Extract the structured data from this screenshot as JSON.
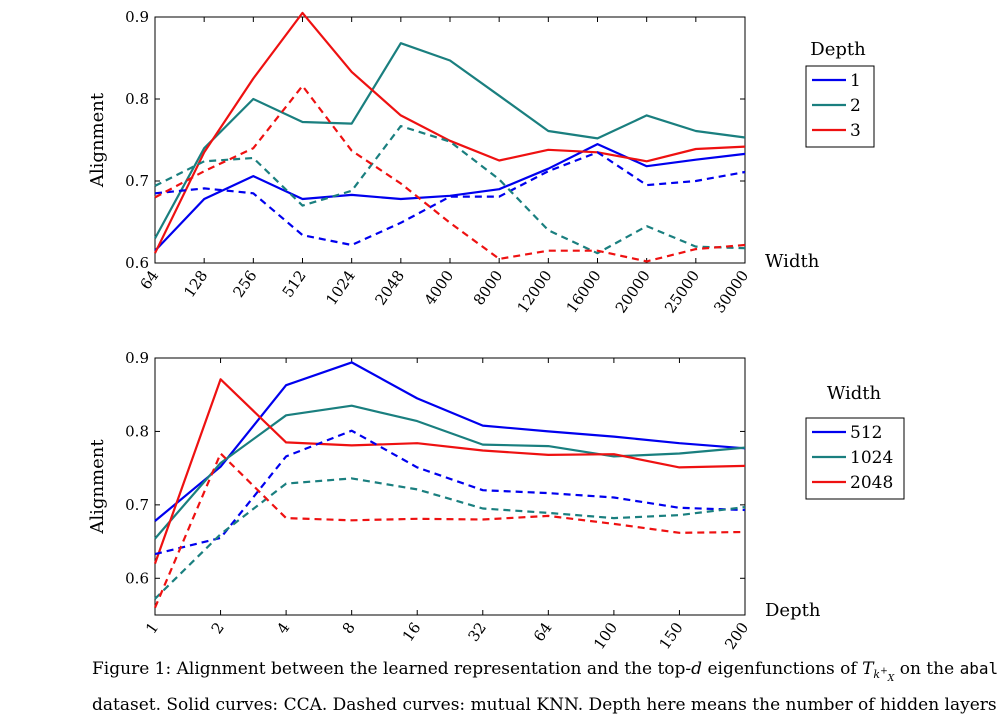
{
  "figure": {
    "caption": {
      "prefix": "Figure 1: Alignment between the learned representation and the top-",
      "d": "d",
      "mid": " eigenfunctions of ",
      "T": "T",
      "sub": "k",
      "subsup": "+",
      "subsub": "X",
      "mid2": " on the ",
      "dataset": "abalone",
      "line2": "dataset. Solid curves: CCA. Dashed curves: mutual KNN. Depth here means the number of hidden layers."
    }
  },
  "chart_data": [
    {
      "type": "line",
      "xlabel": "Width",
      "ylabel": "Alignment",
      "legend_title": "Depth",
      "legend_position": "right",
      "categories": [
        "64",
        "128",
        "256",
        "512",
        "1024",
        "2048",
        "4000",
        "8000",
        "12000",
        "16000",
        "20000",
        "25000",
        "30000"
      ],
      "ylim": [
        0.6,
        0.9
      ],
      "yticks": [
        0.6,
        0.7,
        0.8,
        0.9
      ],
      "ytick_labels": [
        "0.6",
        "0.7",
        "0.8",
        "0.9"
      ],
      "series": [
        {
          "name": "1",
          "color": "#0000ee",
          "style": "solid",
          "values": [
            0.615,
            0.678,
            0.706,
            0.678,
            0.683,
            0.678,
            0.682,
            0.69,
            0.715,
            0.745,
            0.718,
            0.726,
            0.733
          ]
        },
        {
          "name": "2",
          "color": "#1a7f7f",
          "style": "solid",
          "values": [
            0.63,
            0.74,
            0.8,
            0.772,
            0.77,
            0.868,
            0.847,
            0.804,
            0.761,
            0.752,
            0.78,
            0.761,
            0.753
          ]
        },
        {
          "name": "3",
          "color": "#ee1111",
          "style": "solid",
          "values": [
            0.612,
            0.735,
            0.825,
            0.905,
            0.833,
            0.78,
            0.749,
            0.725,
            0.738,
            0.735,
            0.724,
            0.739,
            0.742
          ]
        },
        {
          "name": "",
          "color": "#0000ee",
          "style": "dashed",
          "values": [
            0.685,
            0.691,
            0.685,
            0.634,
            0.622,
            0.649,
            0.681,
            0.681,
            0.712,
            0.735,
            0.695,
            0.7,
            0.711
          ]
        },
        {
          "name": "",
          "color": "#1a7f7f",
          "style": "dashed",
          "values": [
            0.694,
            0.724,
            0.728,
            0.67,
            0.688,
            0.767,
            0.748,
            0.702,
            0.64,
            0.612,
            0.645,
            0.62,
            0.618
          ]
        },
        {
          "name": "",
          "color": "#ee1111",
          "style": "dashed",
          "values": [
            0.68,
            0.712,
            0.74,
            0.816,
            0.737,
            0.697,
            0.649,
            0.605,
            0.615,
            0.615,
            0.602,
            0.617,
            0.622
          ]
        }
      ]
    },
    {
      "type": "line",
      "xlabel": "Depth",
      "ylabel": "Alignment",
      "legend_title": "Width",
      "legend_position": "right",
      "categories": [
        "1",
        "2",
        "4",
        "8",
        "16",
        "32",
        "64",
        "100",
        "150",
        "200"
      ],
      "ylim": [
        0.55,
        0.9
      ],
      "yticks": [
        0.6,
        0.7,
        0.8,
        0.9
      ],
      "ytick_labels": [
        "0.6",
        "0.7",
        "0.8",
        "0.9"
      ],
      "series": [
        {
          "name": "512",
          "color": "#0000ee",
          "style": "solid",
          "values": [
            0.678,
            0.752,
            0.863,
            0.894,
            0.845,
            0.808,
            0.8,
            0.793,
            0.784,
            0.777
          ]
        },
        {
          "name": "1024",
          "color": "#1a7f7f",
          "style": "solid",
          "values": [
            0.654,
            0.757,
            0.822,
            0.835,
            0.814,
            0.782,
            0.78,
            0.766,
            0.77,
            0.778
          ]
        },
        {
          "name": "2048",
          "color": "#ee1111",
          "style": "solid",
          "values": [
            0.62,
            0.871,
            0.785,
            0.781,
            0.784,
            0.774,
            0.768,
            0.769,
            0.751,
            0.753
          ]
        },
        {
          "name": "",
          "color": "#0000ee",
          "style": "dashed",
          "values": [
            0.633,
            0.655,
            0.766,
            0.801,
            0.751,
            0.72,
            0.716,
            0.71,
            0.696,
            0.693
          ]
        },
        {
          "name": "",
          "color": "#1a7f7f",
          "style": "dashed",
          "values": [
            0.572,
            0.66,
            0.729,
            0.736,
            0.721,
            0.695,
            0.689,
            0.682,
            0.686,
            0.697
          ]
        },
        {
          "name": "",
          "color": "#ee1111",
          "style": "dashed",
          "values": [
            0.56,
            0.77,
            0.682,
            0.679,
            0.681,
            0.68,
            0.685,
            0.674,
            0.662,
            0.663
          ]
        }
      ]
    }
  ]
}
